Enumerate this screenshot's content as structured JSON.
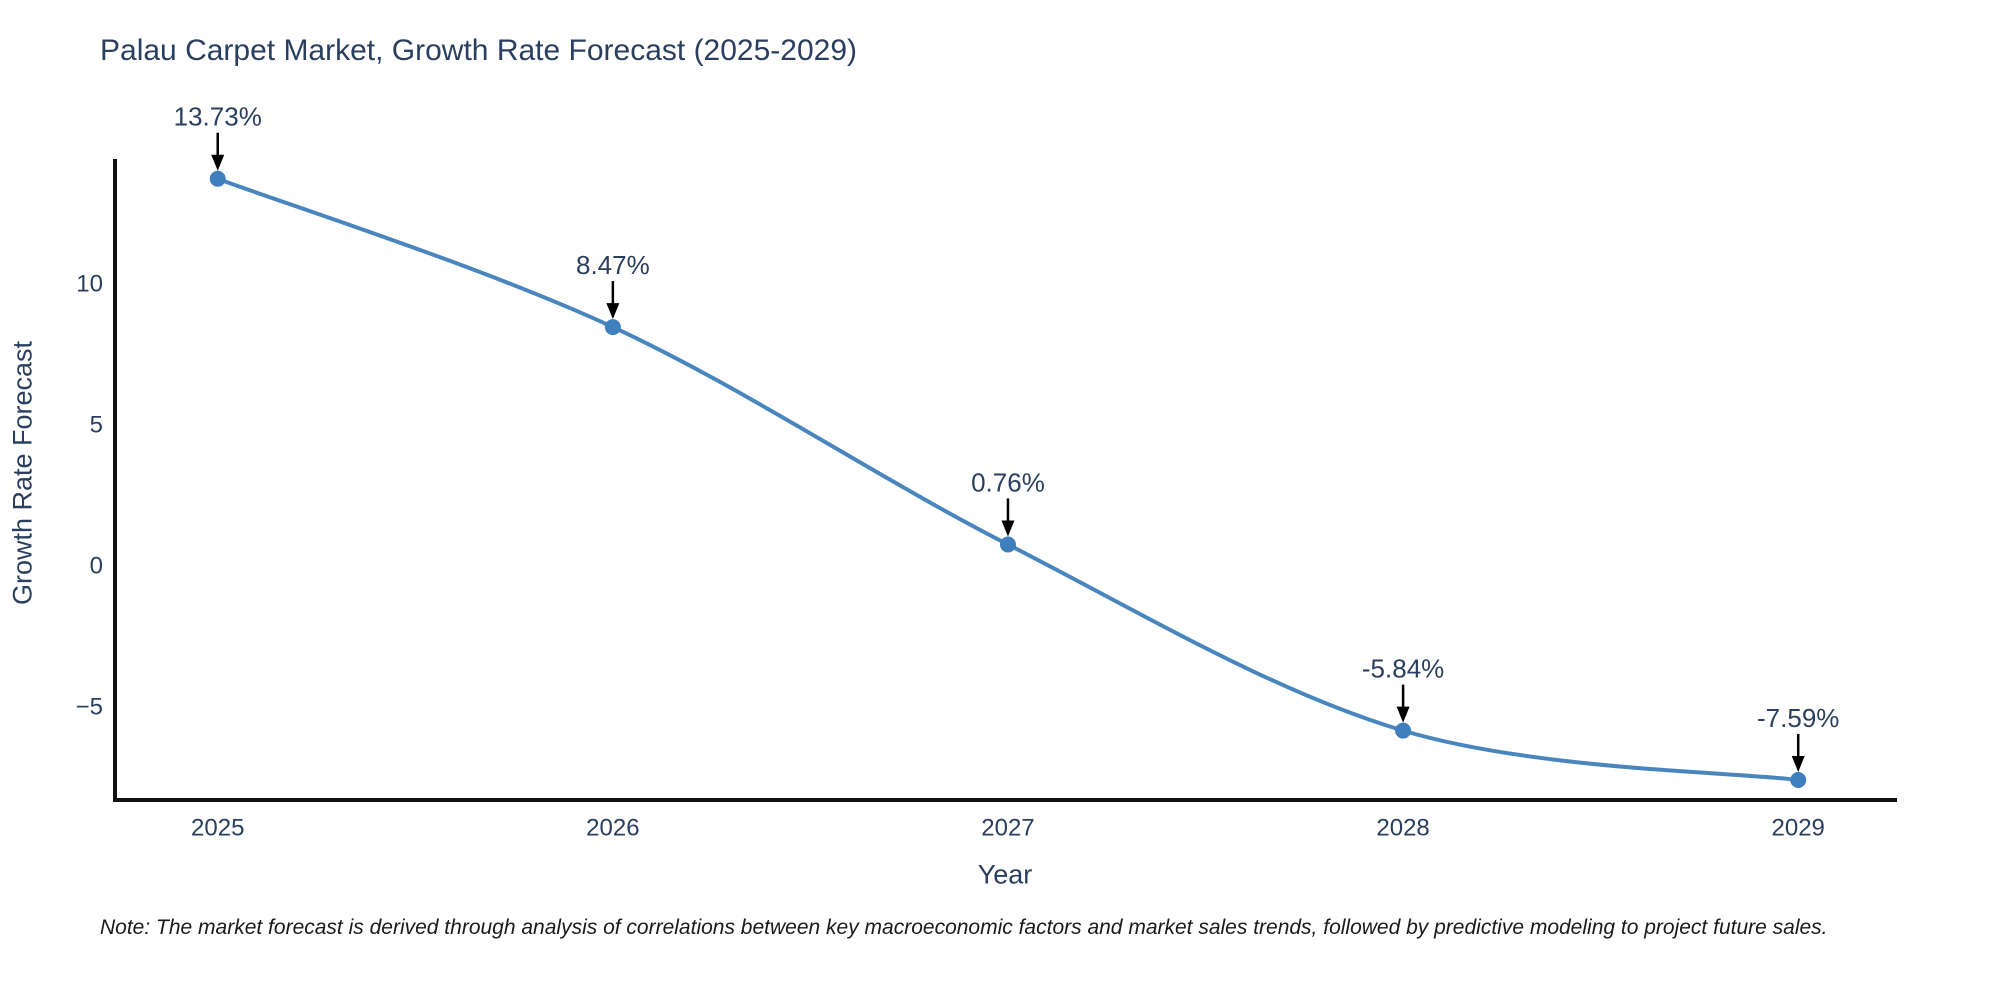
{
  "title": "Palau Carpet Market, Growth Rate Forecast (2025-2029)",
  "note": "Note: The market forecast is derived through analysis of correlations between key macroeconomic factors and market sales trends, followed by predictive modeling to project future sales.",
  "chart_data": {
    "type": "line",
    "title": "Palau Carpet Market, Growth Rate Forecast (2025-2029)",
    "xlabel": "Year",
    "ylabel": "Growth Rate Forecast",
    "x": [
      2025,
      2026,
      2027,
      2028,
      2029
    ],
    "values": [
      13.73,
      8.47,
      0.76,
      -5.84,
      -7.59
    ],
    "point_labels": [
      "13.73%",
      "8.47%",
      "0.76%",
      "-5.84%",
      "-7.59%"
    ],
    "x_tick_labels": [
      "2025",
      "2026",
      "2027",
      "2028",
      "2029"
    ],
    "y_ticks": [
      10,
      5,
      0,
      -5
    ],
    "y_tick_labels": [
      "10",
      "5",
      "0",
      "−5"
    ],
    "xlim": [
      2024.74,
      2029.25
    ],
    "ylim": [
      -8.3,
      14.43
    ],
    "line_shape": "spline",
    "grid": false,
    "legend_position": "none",
    "colors": {
      "line": "#4a86be",
      "marker": "#3f7fbd",
      "arrow": "#000000",
      "label_text": "#2a3f5f",
      "tick_text": "#2a3f5f",
      "axis": "#111111",
      "background": "#ffffff"
    }
  }
}
